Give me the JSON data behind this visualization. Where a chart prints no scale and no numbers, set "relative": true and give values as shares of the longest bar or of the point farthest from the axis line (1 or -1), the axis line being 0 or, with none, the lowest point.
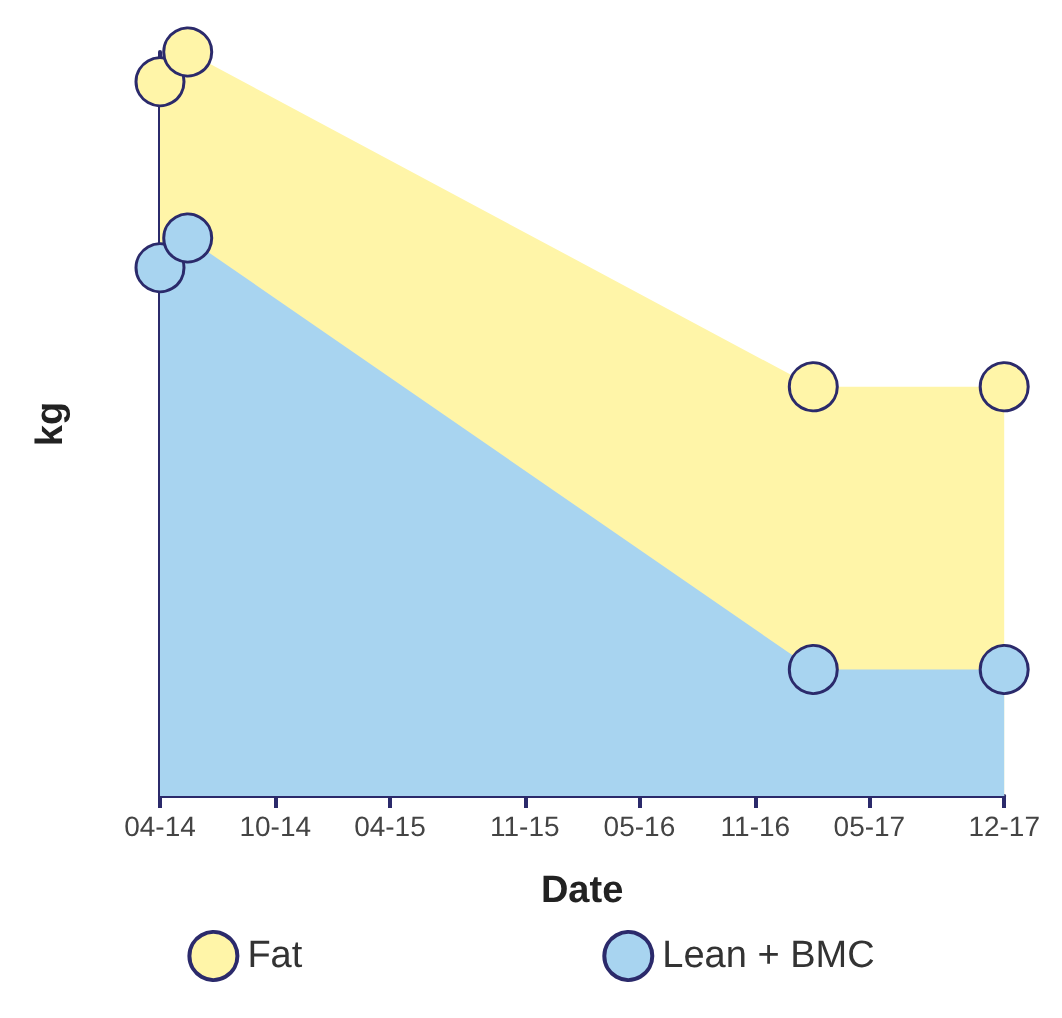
{
  "chart_data": {
    "type": "area",
    "xlabel": "Date",
    "ylabel": "kg",
    "stacked": true,
    "relative": true,
    "marker": "circle",
    "legend": "bottom",
    "grid": false,
    "x": [
      "2014-04",
      "2014-05-15",
      "2017-02",
      "2017-12"
    ],
    "series": [
      {
        "name": "Lean + BMC",
        "color": "#a8d4f0",
        "values": [
          0.71,
          0.75,
          0.17,
          0.17
        ]
      },
      {
        "name": "Fat",
        "color": "#fff5a8",
        "values": [
          0.25,
          0.25,
          0.38,
          0.38
        ]
      }
    ],
    "xlim": [
      "2014-04",
      "2017-12"
    ],
    "xticks": [
      {
        "value": "2014-04",
        "label": "04-14"
      },
      {
        "value": "2014-10",
        "label": "10-14"
      },
      {
        "value": "2015-04",
        "label": "04-15"
      },
      {
        "value": "2015-11",
        "label": "11-15"
      },
      {
        "value": "2016-05",
        "label": "05-16"
      },
      {
        "value": "2016-11",
        "label": "11-16"
      },
      {
        "value": "2017-05",
        "label": "05-17"
      },
      {
        "value": "2017-12",
        "label": "12-17"
      }
    ]
  }
}
